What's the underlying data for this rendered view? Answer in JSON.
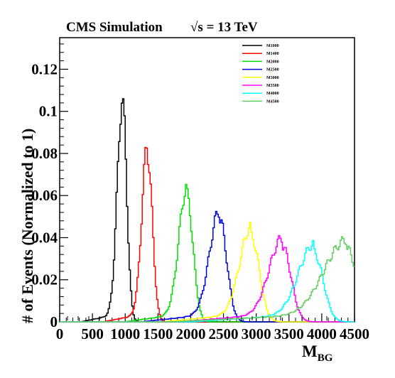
{
  "chart_data": {
    "type": "line",
    "title": "CMS Simulation",
    "subtitle": "√s = 13 TeV",
    "xlabel": "M",
    "xlabel_sub": "BG",
    "ylabel": "# of Events (Normalized to 1)",
    "xlim": [
      0,
      4500
    ],
    "ylim": [
      0,
      0.135
    ],
    "x_ticks": [
      {
        "v": 0,
        "label": "0"
      },
      {
        "v": 500,
        "label": "500"
      },
      {
        "v": 1000,
        "label": "1000"
      },
      {
        "v": 1500,
        "label": "1500"
      },
      {
        "v": 2000,
        "label": "2000"
      },
      {
        "v": 2500,
        "label": "2500"
      },
      {
        "v": 3000,
        "label": "3000"
      },
      {
        "v": 3500,
        "label": "3500"
      },
      {
        "v": 4000,
        "label": "4000"
      },
      {
        "v": 4500,
        "label": "4500"
      }
    ],
    "y_ticks": [
      {
        "v": 0,
        "label": "0"
      },
      {
        "v": 0.02,
        "label": "0.02"
      },
      {
        "v": 0.04,
        "label": "0.04"
      },
      {
        "v": 0.06,
        "label": "0.06"
      },
      {
        "v": 0.08,
        "label": "0.08"
      },
      {
        "v": 0.1,
        "label": "0.1"
      },
      {
        "v": 0.12,
        "label": "0.12"
      }
    ],
    "grid": false,
    "legend_position": "top-right",
    "series": [
      {
        "name": "M1000",
        "color": "#000000",
        "peak": 960,
        "height": 0.103,
        "sigma_left": 80,
        "sigma_right": 65,
        "tail": 0.004
      },
      {
        "name": "M1400",
        "color": "#ff0000",
        "peak": 1340,
        "height": 0.08,
        "sigma_left": 85,
        "sigma_right": 75,
        "tail": 0.004
      },
      {
        "name": "M2000",
        "color": "#00dd00",
        "peak": 1940,
        "height": 0.06,
        "sigma_left": 120,
        "sigma_right": 95,
        "tail": 0.004
      },
      {
        "name": "M2500",
        "color": "#0000dd",
        "peak": 2440,
        "height": 0.049,
        "sigma_left": 150,
        "sigma_right": 110,
        "tail": 0.004
      },
      {
        "name": "M3000",
        "color": "#ffff00",
        "peak": 2920,
        "height": 0.041,
        "sigma_left": 170,
        "sigma_right": 125,
        "tail": 0.004
      },
      {
        "name": "M3500",
        "color": "#ff00ff",
        "peak": 3400,
        "height": 0.036,
        "sigma_left": 200,
        "sigma_right": 130,
        "tail": 0.004
      },
      {
        "name": "M4000",
        "color": "#00ffff",
        "peak": 3880,
        "height": 0.033,
        "sigma_left": 230,
        "sigma_right": 140,
        "tail": 0.004
      },
      {
        "name": "M4500",
        "color": "#66cc66",
        "peak": 4380,
        "height": 0.035,
        "sigma_left": 340,
        "sigma_right": 160,
        "tail": 0.004
      }
    ]
  }
}
